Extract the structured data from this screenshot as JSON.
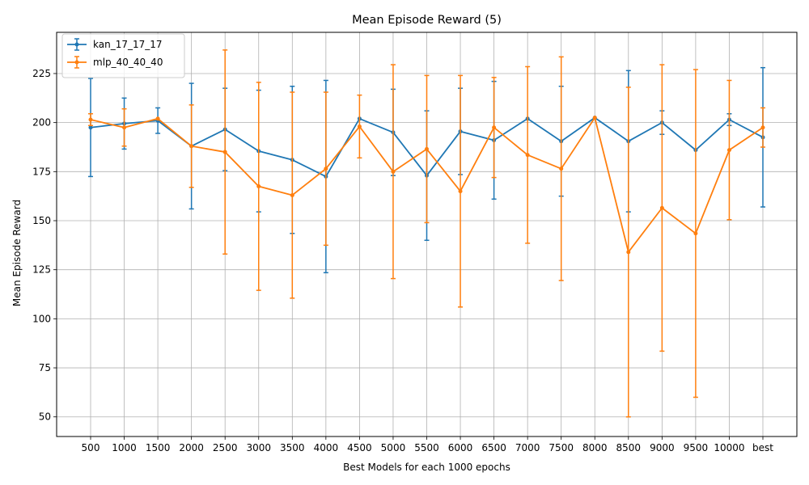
{
  "chart_data": {
    "type": "line",
    "title": "Mean Episode Reward (5)",
    "xlabel": "Best Models for each 1000 epochs",
    "ylabel": "Mean Episode Reward",
    "categories": [
      "500",
      "1000",
      "1500",
      "2000",
      "2500",
      "3000",
      "3500",
      "4000",
      "4500",
      "5000",
      "5500",
      "6000",
      "6500",
      "7000",
      "7500",
      "8000",
      "8500",
      "9000",
      "9500",
      "10000",
      "best"
    ],
    "ylim": [
      40,
      246
    ],
    "yticks": [
      50,
      75,
      100,
      125,
      150,
      175,
      200,
      225
    ],
    "grid": true,
    "legend_position": "top-left",
    "series": [
      {
        "name": "kan_17_17_17",
        "color": "#1f77b4",
        "values": [
          197.5,
          199.5,
          201,
          188,
          196.5,
          185.5,
          181,
          172.5,
          202,
          195,
          173,
          195.5,
          191,
          202,
          190.5,
          202.5,
          190.5,
          200,
          186,
          201.5,
          192.5
        ],
        "errors": [
          25,
          13,
          6.5,
          32,
          21,
          31,
          37.5,
          49,
          0,
          22,
          33,
          22,
          30,
          0,
          28,
          0,
          36,
          6,
          0,
          3,
          35.5
        ]
      },
      {
        "name": "mlp_40_40_40",
        "color": "#ff7f0e",
        "values": [
          201.5,
          197.5,
          202,
          188,
          185,
          167.5,
          163,
          176.5,
          198,
          175,
          186.5,
          165,
          197.5,
          183.5,
          176.5,
          202.5,
          134,
          156.5,
          143.5,
          186,
          197.5
        ],
        "errors": [
          3,
          9.5,
          0,
          21,
          52,
          53,
          52.5,
          39,
          16,
          54.5,
          37.5,
          59,
          25.5,
          45,
          57,
          0,
          84,
          73,
          83.5,
          35.5,
          10
        ]
      }
    ]
  }
}
